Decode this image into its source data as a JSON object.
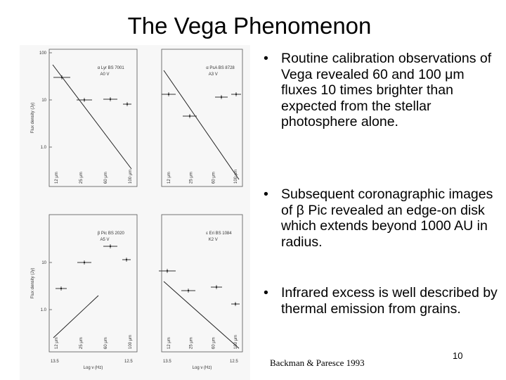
{
  "title": "The Vega Phenomenon",
  "bullets": [
    "Routine calibration observations of Vega revealed 60 and 100 μm fluxes 10 times brighter than expected from the stellar photosphere alone.",
    "Subsequent coronagraphic images of β Pic revealed an edge-on disk which extends beyond 1000 AU in radius.",
    "Infrared excess is well described by thermal emission from grains."
  ],
  "citation": "Backman & Paresce 1993",
  "page_number": "10",
  "figure": {
    "y_axis_label": "Flux density (Jy)",
    "x_axis_label": "Log ν (Hz)",
    "x_tick_labels": [
      "13.5",
      "12.5"
    ],
    "band_labels": [
      "12 μm",
      "25 μm",
      "60 μm",
      "100 μm"
    ],
    "panels": [
      {
        "star": "α Lyr BS 7001",
        "spectral_type": "A0 V",
        "y_tick_labels": [
          "100",
          "10",
          "1.0"
        ]
      },
      {
        "star": "α PsA BS 8728",
        "spectral_type": "A3 V"
      },
      {
        "star": "β Pic BS 2020",
        "spectral_type": "A5 V",
        "y_tick_labels": [
          "10",
          "1.0"
        ]
      },
      {
        "star": "ε Eri BS 1084",
        "spectral_type": "K2 V"
      }
    ]
  }
}
